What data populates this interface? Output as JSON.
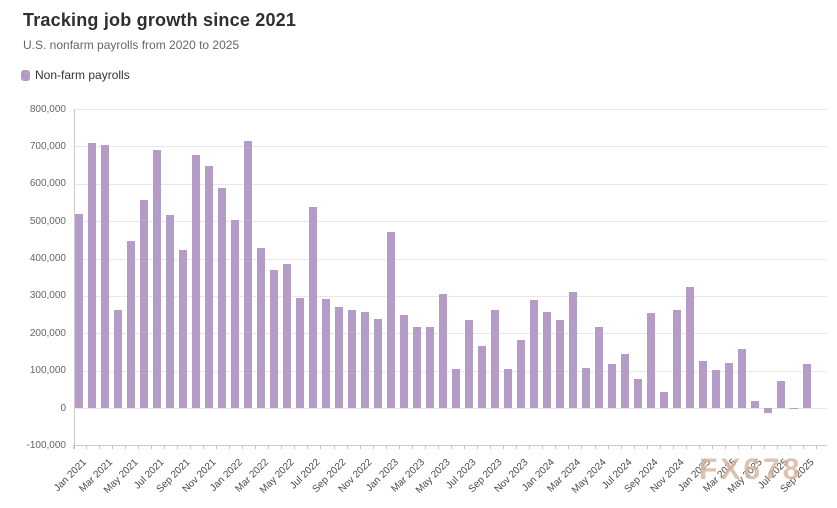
{
  "chart_data": {
    "type": "bar",
    "title": "Tracking job growth since 2021",
    "subtitle": "U.S. nonfarm payrolls from 2020 to 2025",
    "categories": [
      "Jan 2021",
      "Feb 2021",
      "Mar 2021",
      "Apr 2021",
      "May 2021",
      "Jun 2021",
      "Jul 2021",
      "Aug 2021",
      "Sep 2021",
      "Oct 2021",
      "Nov 2021",
      "Dec 2021",
      "Jan 2022",
      "Feb 2022",
      "Mar 2022",
      "Apr 2022",
      "May 2022",
      "Jun 2022",
      "Jul 2022",
      "Aug 2022",
      "Sep 2022",
      "Oct 2022",
      "Nov 2022",
      "Dec 2022",
      "Jan 2023",
      "Feb 2023",
      "Mar 2023",
      "Apr 2023",
      "May 2023",
      "Jun 2023",
      "Jul 2023",
      "Aug 2023",
      "Sep 2023",
      "Oct 2023",
      "Nov 2023",
      "Dec 2023",
      "Jan 2024",
      "Feb 2024",
      "Mar 2024",
      "Apr 2024",
      "May 2024",
      "Jun 2024",
      "Jul 2024",
      "Aug 2024",
      "Sep 2024",
      "Oct 2024",
      "Nov 2024",
      "Dec 2024",
      "Jan 2025",
      "Feb 2025",
      "Mar 2025",
      "Apr 2025",
      "May 2025",
      "Jun 2025",
      "Jul 2025",
      "Aug 2025",
      "Sep 2025"
    ],
    "series": [
      {
        "name": "Non-farm payrolls",
        "color": "#b49cc6",
        "values": [
          520000,
          710000,
          704000,
          263000,
          447000,
          557000,
          689000,
          517000,
          424000,
          677000,
          647000,
          588000,
          504000,
          714000,
          428000,
          368000,
          384000,
          293000,
          537000,
          292000,
          269000,
          261000,
          257000,
          239000,
          472000,
          248000,
          217000,
          217000,
          306000,
          105000,
          236000,
          165000,
          262000,
          105000,
          182000,
          290000,
          256000,
          236000,
          310000,
          108000,
          216000,
          118000,
          144000,
          78000,
          255000,
          44000,
          261000,
          323000,
          125000,
          102000,
          120000,
          158000,
          19000,
          -13000,
          72000,
          -4000,
          119000
        ]
      }
    ],
    "xlabel": "",
    "ylabel": "",
    "ylim": [
      -100000,
      800000
    ],
    "ytick_interval": 100000,
    "ytick_labels": [
      "800,000",
      "700,000",
      "600,000",
      "500,000",
      "400,000",
      "300,000",
      "200,000",
      "100,000",
      "0",
      "-100,000"
    ],
    "x_label_every_n": 2,
    "x_label_rotation_deg": -45,
    "grid": true,
    "legend_position": "top-left",
    "colors": {
      "bar": "#b49cc6",
      "grid": "#e7e7e7",
      "axis": "#c9c9c9",
      "title": "#2f2f2f",
      "subtitle": "#666666",
      "y_label": "#666666",
      "x_label": "#4a4a4a"
    }
  },
  "watermark": {
    "text": "FX678",
    "color": "rgba(195,144,111,0.55)"
  }
}
